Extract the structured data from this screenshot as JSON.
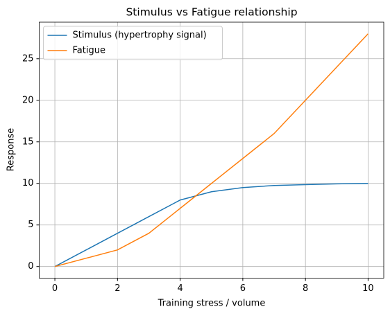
{
  "chart_data": {
    "type": "line",
    "title": "Stimulus vs Fatigue relationship",
    "x_label": "Training stress / volume",
    "y_label": "Response",
    "x": [
      0,
      1,
      2,
      3,
      4,
      5,
      6,
      7,
      8,
      9,
      10
    ],
    "series": [
      {
        "name": "Stimulus (hypertrophy signal)",
        "color": "#1f77b4",
        "values": [
          0,
          2,
          4,
          6,
          8,
          9,
          9.5,
          9.75,
          9.85,
          9.95,
          10
        ]
      },
      {
        "name": "Fatigue",
        "color": "#ff7f0e",
        "values": [
          0,
          1,
          2,
          4,
          7,
          10,
          13,
          16,
          20,
          24,
          28
        ]
      }
    ],
    "xlim": [
      -0.5,
      10.5
    ],
    "xticks": [
      0,
      2,
      4,
      6,
      8,
      10
    ],
    "ylim": [
      -1.4,
      29.4
    ],
    "yticks": [
      0,
      5,
      10,
      15,
      20,
      25
    ],
    "grid": true,
    "legend": "upper-left"
  }
}
